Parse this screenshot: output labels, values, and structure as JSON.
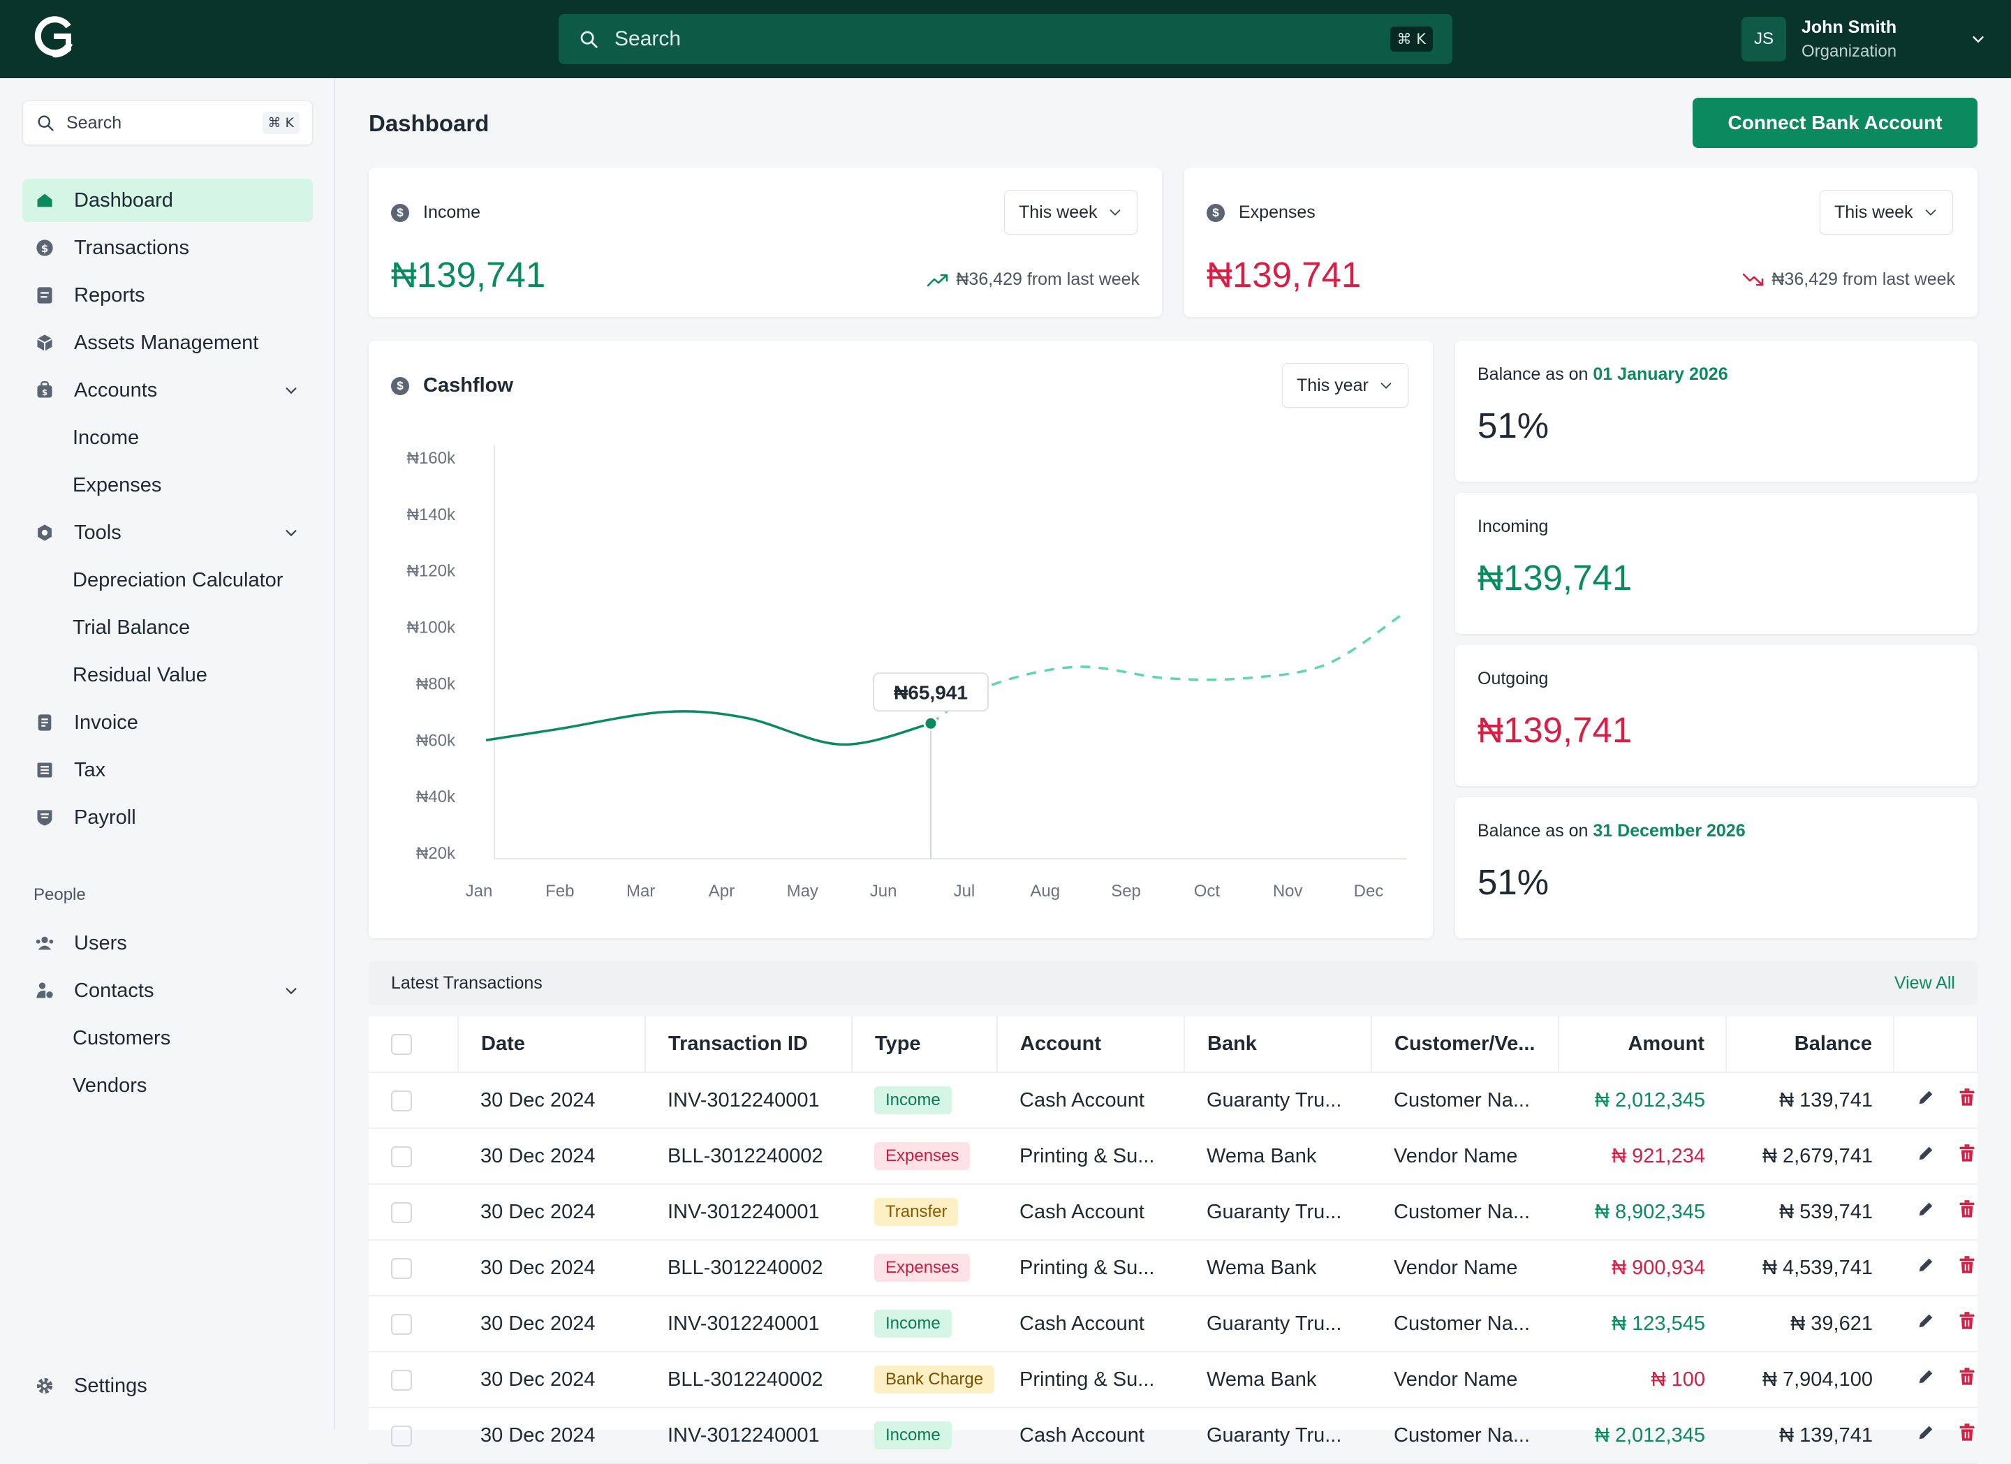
{
  "topbar": {
    "search_placeholder": "Search",
    "shortcut": "⌘ K",
    "user": {
      "initials": "JS",
      "name": "John Smith",
      "org": "Organization"
    }
  },
  "sidebar": {
    "search_placeholder": "Search",
    "shortcut": "⌘ K",
    "items": [
      {
        "label": "Dashboard"
      },
      {
        "label": "Transactions"
      },
      {
        "label": "Reports"
      },
      {
        "label": "Assets Management"
      },
      {
        "label": "Accounts"
      },
      {
        "label": "Income"
      },
      {
        "label": "Expenses"
      },
      {
        "label": "Tools"
      },
      {
        "label": "Depreciation Calculator"
      },
      {
        "label": "Trial Balance"
      },
      {
        "label": "Residual Value"
      },
      {
        "label": "Invoice"
      },
      {
        "label": "Tax"
      },
      {
        "label": "Payroll"
      }
    ],
    "people_section": "People",
    "people_items": [
      {
        "label": "Users"
      },
      {
        "label": "Contacts"
      },
      {
        "label": "Customers"
      },
      {
        "label": "Vendors"
      }
    ],
    "settings_label": "Settings"
  },
  "header": {
    "title": "Dashboard",
    "connect_button": "Connect Bank Account"
  },
  "income_card": {
    "label": "Income",
    "period": "This week",
    "value": "₦139,741",
    "trend": "₦36,429 from last week"
  },
  "expenses_card": {
    "label": "Expenses",
    "period": "This week",
    "value": "₦139,741",
    "trend": "₦36,429 from last week"
  },
  "cashflow": {
    "title": "Cashflow",
    "period": "This year",
    "tooltip": "₦65,941"
  },
  "chart_data": {
    "type": "line",
    "categories": [
      "Jan",
      "Feb",
      "Mar",
      "Apr",
      "May",
      "Jun",
      "Jul",
      "Aug",
      "Sep",
      "Oct",
      "Nov",
      "Dec"
    ],
    "y_ticks": [
      "₦160k",
      "₦140k",
      "₦120k",
      "₦100k",
      "₦80k",
      "₦60k",
      "₦40k",
      "₦20k"
    ],
    "ylim": [
      20000,
      160000
    ],
    "series": [
      {
        "style": "actual",
        "x": [
          0.0,
          0.9,
          2.2,
          3.2,
          4.4,
          5.5
        ],
        "values": [
          60000,
          64000,
          70000,
          68000,
          58500,
          65941
        ]
      },
      {
        "style": "forecast",
        "x": [
          5.5,
          6.2,
          7.3,
          8.4,
          9.4,
          10.4,
          11.3
        ],
        "values": [
          65941,
          79000,
          86000,
          82000,
          82000,
          87000,
          104000
        ]
      }
    ],
    "highlight": {
      "x": 5.5,
      "value": 65941
    }
  },
  "balances": [
    {
      "label": "Balance as on ",
      "date": "01 January 2026",
      "value": "51%"
    },
    {
      "label": "Incoming",
      "date": "",
      "value": "₦139,741"
    },
    {
      "label": "Outgoing",
      "date": "",
      "value": "₦139,741"
    },
    {
      "label": "Balance as on ",
      "date": "31 December 2026",
      "value": "51%"
    }
  ],
  "transactions": {
    "title": "Latest Transactions",
    "view_all": "View All",
    "columns": [
      "Date",
      "Transaction ID",
      "Type",
      "Account",
      "Bank",
      "Customer/Ve...",
      "Amount",
      "Balance"
    ],
    "rows": [
      {
        "date": "30 Dec 2024",
        "id": "INV-3012240001",
        "type": "Income",
        "account": "Cash Account",
        "bank": "Guaranty Tru...",
        "party": "Customer Na...",
        "amount": "₦ 2,012,345",
        "balance": "₦ 139,741"
      },
      {
        "date": "30 Dec 2024",
        "id": "BLL-3012240002",
        "type": "Expenses",
        "account": "Printing & Su...",
        "bank": "Wema Bank",
        "party": "Vendor Name",
        "amount": "₦ 921,234",
        "balance": "₦ 2,679,741"
      },
      {
        "date": "30 Dec 2024",
        "id": "INV-3012240001",
        "type": "Transfer",
        "account": "Cash Account",
        "bank": "Guaranty Tru...",
        "party": "Customer Na...",
        "amount": "₦ 8,902,345",
        "balance": "₦ 539,741"
      },
      {
        "date": "30 Dec 2024",
        "id": "BLL-3012240002",
        "type": "Expenses",
        "account": "Printing & Su...",
        "bank": "Wema Bank",
        "party": "Vendor Name",
        "amount": "₦ 900,934",
        "balance": "₦ 4,539,741"
      },
      {
        "date": "30 Dec 2024",
        "id": "INV-3012240001",
        "type": "Income",
        "account": "Cash Account",
        "bank": "Guaranty Tru...",
        "party": "Customer Na...",
        "amount": "₦ 123,545",
        "balance": "₦ 39,621"
      },
      {
        "date": "30 Dec 2024",
        "id": "BLL-3012240002",
        "type": "Bank Charge",
        "account": "Printing & Su...",
        "bank": "Wema Bank",
        "party": "Vendor Name",
        "amount": "₦ 100",
        "balance": "₦ 7,904,100"
      },
      {
        "date": "30 Dec 2024",
        "id": "INV-3012240001",
        "type": "Income",
        "account": "Cash Account",
        "bank": "Guaranty Tru...",
        "party": "Customer Na...",
        "amount": "₦ 2,012,345",
        "balance": "₦ 139,741"
      }
    ]
  },
  "colors": {
    "brand_dark": "#08342a",
    "accent": "#0c8a5f",
    "danger": "#d61f45"
  }
}
